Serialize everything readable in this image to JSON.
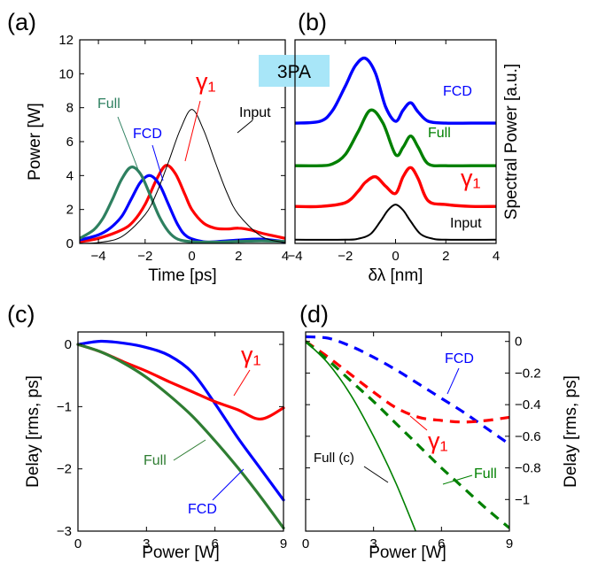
{
  "chart_data": [
    {
      "panel": "(a)",
      "type": "line",
      "xlabel": "Time [ps]",
      "ylabel": "Power [W]",
      "xlim": [
        -4.8,
        4
      ],
      "ylim": [
        0,
        12
      ],
      "xticks": [
        -4,
        -2,
        0,
        2,
        4
      ],
      "yticks": [
        0,
        2,
        4,
        6,
        8,
        10,
        12
      ],
      "xticklabels": [
        "−4",
        "−2",
        "0",
        "2",
        "4"
      ],
      "yticklabels": [
        "0",
        "2",
        "4",
        "6",
        "8",
        "10",
        "12"
      ],
      "badge": "3PA",
      "series": [
        {
          "name": "Input",
          "color": "#000000",
          "x": [
            -4.8,
            -4,
            -3,
            -2,
            -1.5,
            -1,
            -0.5,
            0,
            0.5,
            1,
            1.5,
            2,
            3,
            4
          ],
          "y": [
            0.01,
            0.05,
            0.4,
            1.7,
            3.0,
            4.8,
            6.7,
            7.9,
            6.7,
            4.8,
            3.0,
            1.7,
            0.4,
            0.05
          ]
        },
        {
          "name": "Full",
          "color": "#2e8060",
          "x": [
            -4.8,
            -4.2,
            -3.8,
            -3.4,
            -3.0,
            -2.6,
            -2.2,
            -1.8,
            -1.4,
            -1.0,
            -0.6,
            0,
            1,
            2,
            3,
            4
          ],
          "y": [
            0.3,
            0.8,
            1.5,
            2.6,
            3.8,
            4.5,
            4.1,
            2.9,
            1.6,
            0.7,
            0.25,
            0.1,
            0.08,
            0.12,
            0.15,
            0.12
          ]
        },
        {
          "name": "FCD",
          "color": "#0000ff",
          "x": [
            -4.8,
            -4,
            -3.5,
            -3,
            -2.6,
            -2.2,
            -1.8,
            -1.4,
            -1,
            -0.6,
            -0.2,
            0.5,
            1,
            2,
            3,
            4
          ],
          "y": [
            0.2,
            0.5,
            0.9,
            1.6,
            2.6,
            3.6,
            4.0,
            3.5,
            2.3,
            1.1,
            0.4,
            0.1,
            0.1,
            0.2,
            0.25,
            0.1
          ]
        },
        {
          "name": "γ₁",
          "color": "#ff0000",
          "x": [
            -4.8,
            -4,
            -3,
            -2.5,
            -2,
            -1.5,
            -1.1,
            -0.7,
            -0.3,
            0,
            0.5,
            1,
            1.5,
            2,
            2.5,
            3,
            3.5,
            4
          ],
          "y": [
            0.1,
            0.3,
            0.8,
            1.3,
            2.3,
            3.8,
            4.6,
            4.1,
            2.9,
            2.0,
            1.2,
            0.9,
            0.85,
            0.9,
            0.8,
            0.6,
            0.45,
            0.3
          ]
        }
      ],
      "annotations": [
        "Full",
        "FCD",
        "γ₁",
        "Input"
      ]
    },
    {
      "panel": "(b)",
      "type": "line",
      "xlabel": "δλ [nm]",
      "ylabel": "Spectral Power [a.u.]",
      "xlim": [
        -4,
        4
      ],
      "xticks": [
        -4,
        -2,
        0,
        2,
        4
      ],
      "xticklabels": [
        "−4",
        "−2",
        "0",
        "2",
        "4"
      ],
      "series": [
        {
          "name": "FCD",
          "color": "#0000ff",
          "x": [
            -4,
            -3,
            -2.5,
            -2,
            -1.6,
            -1.2,
            -0.8,
            -0.4,
            0,
            0.3,
            0.6,
            0.9,
            1.3,
            2,
            3,
            4
          ],
          "y": [
            0.65,
            0.66,
            0.72,
            0.85,
            0.96,
            1.0,
            0.92,
            0.74,
            0.66,
            0.72,
            0.76,
            0.71,
            0.66,
            0.65,
            0.65,
            0.65
          ]
        },
        {
          "name": "Full",
          "color": "#008000",
          "x": [
            -4,
            -3,
            -2.5,
            -2,
            -1.5,
            -1,
            -0.5,
            0,
            0.3,
            0.6,
            0.9,
            1.3,
            2,
            3,
            4
          ],
          "y": [
            0.42,
            0.42,
            0.43,
            0.48,
            0.6,
            0.72,
            0.65,
            0.48,
            0.52,
            0.58,
            0.52,
            0.43,
            0.42,
            0.42,
            0.42
          ],
          "label": "Full"
        },
        {
          "name": "γ₁",
          "color": "#ff0000",
          "x": [
            -4,
            -3,
            -2,
            -1.5,
            -1.2,
            -0.8,
            -0.4,
            0,
            0.3,
            0.6,
            0.9,
            1.3,
            2,
            3,
            4
          ],
          "y": [
            0.2,
            0.2,
            0.22,
            0.28,
            0.33,
            0.36,
            0.31,
            0.27,
            0.36,
            0.41,
            0.35,
            0.23,
            0.21,
            0.2,
            0.2
          ]
        },
        {
          "name": "Input",
          "color": "#000000",
          "x": [
            -4,
            -2,
            -1.5,
            -1,
            -0.6,
            -0.3,
            0,
            0.3,
            0.6,
            1,
            1.5,
            2,
            4
          ],
          "y": [
            0.02,
            0.02,
            0.025,
            0.05,
            0.12,
            0.18,
            0.21,
            0.18,
            0.12,
            0.05,
            0.025,
            0.02,
            0.02
          ]
        }
      ],
      "annotations": [
        "FCD",
        "Full",
        "γ₁",
        "Input"
      ]
    },
    {
      "panel": "(c)",
      "type": "line",
      "xlabel": "Power [W]",
      "ylabel": "Delay [rms, ps]",
      "xlim": [
        0,
        9
      ],
      "ylim": [
        -3,
        0.2
      ],
      "xticks": [
        0,
        3,
        6,
        9
      ],
      "yticks": [
        0,
        -1,
        -2,
        -3
      ],
      "xticklabels": [
        "0",
        "3",
        "6",
        "9"
      ],
      "yticklabels": [
        "0",
        "−1",
        "−2",
        "−3"
      ],
      "series": [
        {
          "name": "FCD",
          "color": "#0000ff",
          "x": [
            0,
            1,
            2,
            3,
            4,
            5,
            6,
            7,
            8,
            9
          ],
          "y": [
            0,
            0.05,
            0.02,
            -0.05,
            -0.18,
            -0.45,
            -0.95,
            -1.5,
            -2.0,
            -2.5
          ]
        },
        {
          "name": "γ₁",
          "color": "#ff0000",
          "x": [
            0,
            1,
            2,
            3,
            4,
            5,
            6,
            7,
            8,
            9
          ],
          "y": [
            0,
            -0.12,
            -0.28,
            -0.43,
            -0.6,
            -0.76,
            -0.92,
            -1.05,
            -1.2,
            -1.02
          ]
        },
        {
          "name": "Full",
          "color": "#2e7d32",
          "x": [
            0,
            1,
            2,
            3,
            4,
            5,
            6,
            7,
            8,
            9
          ],
          "y": [
            0,
            -0.12,
            -0.3,
            -0.53,
            -0.82,
            -1.15,
            -1.55,
            -1.98,
            -2.45,
            -2.95
          ]
        }
      ],
      "annotations": [
        "γ₁",
        "Full",
        "FCD"
      ]
    },
    {
      "panel": "(d)",
      "type": "line",
      "xlabel": "Power [W]",
      "ylabel": "Delay [rms, ps]",
      "xlim": [
        0,
        9
      ],
      "ylim": [
        -1.2,
        0.06
      ],
      "xticks": [
        0,
        3,
        6,
        9
      ],
      "yticks": [
        0,
        -0.2,
        -0.4,
        -0.6,
        -0.8,
        -1
      ],
      "xticklabels": [
        "0",
        "3",
        "6",
        "9"
      ],
      "yticklabels": [
        "0",
        "−0.2",
        "−0.4",
        "−0.6",
        "−0.8",
        "−1"
      ],
      "series": [
        {
          "name": "FCD",
          "color": "#0000ff",
          "dash": true,
          "x": [
            0,
            1,
            2,
            3,
            4,
            5,
            6,
            7,
            8,
            9
          ],
          "y": [
            0.03,
            0.02,
            -0.03,
            -0.1,
            -0.18,
            -0.27,
            -0.36,
            -0.45,
            -0.55,
            -0.65
          ]
        },
        {
          "name": "γ₁",
          "color": "#ff0000",
          "dash": true,
          "x": [
            0,
            1,
            2,
            3,
            4,
            5,
            6,
            7,
            8,
            9
          ],
          "y": [
            0,
            -0.1,
            -0.21,
            -0.32,
            -0.42,
            -0.48,
            -0.5,
            -0.51,
            -0.5,
            -0.48
          ]
        },
        {
          "name": "Full",
          "color": "#008000",
          "dash": true,
          "x": [
            0,
            1,
            2,
            3,
            4,
            5,
            6,
            7,
            8,
            9
          ],
          "y": [
            0,
            -0.12,
            -0.25,
            -0.38,
            -0.52,
            -0.66,
            -0.8,
            -0.93,
            -1.06,
            -1.18
          ]
        },
        {
          "name": "Full (c)",
          "color": "#008000",
          "dash": false,
          "x": [
            0,
            1,
            2,
            3,
            4,
            5
          ],
          "y": [
            0,
            -0.14,
            -0.34,
            -0.6,
            -0.9,
            -1.25
          ]
        }
      ],
      "annotations": [
        "FCD",
        "γ₁",
        "Full (c)",
        "Full"
      ]
    }
  ]
}
